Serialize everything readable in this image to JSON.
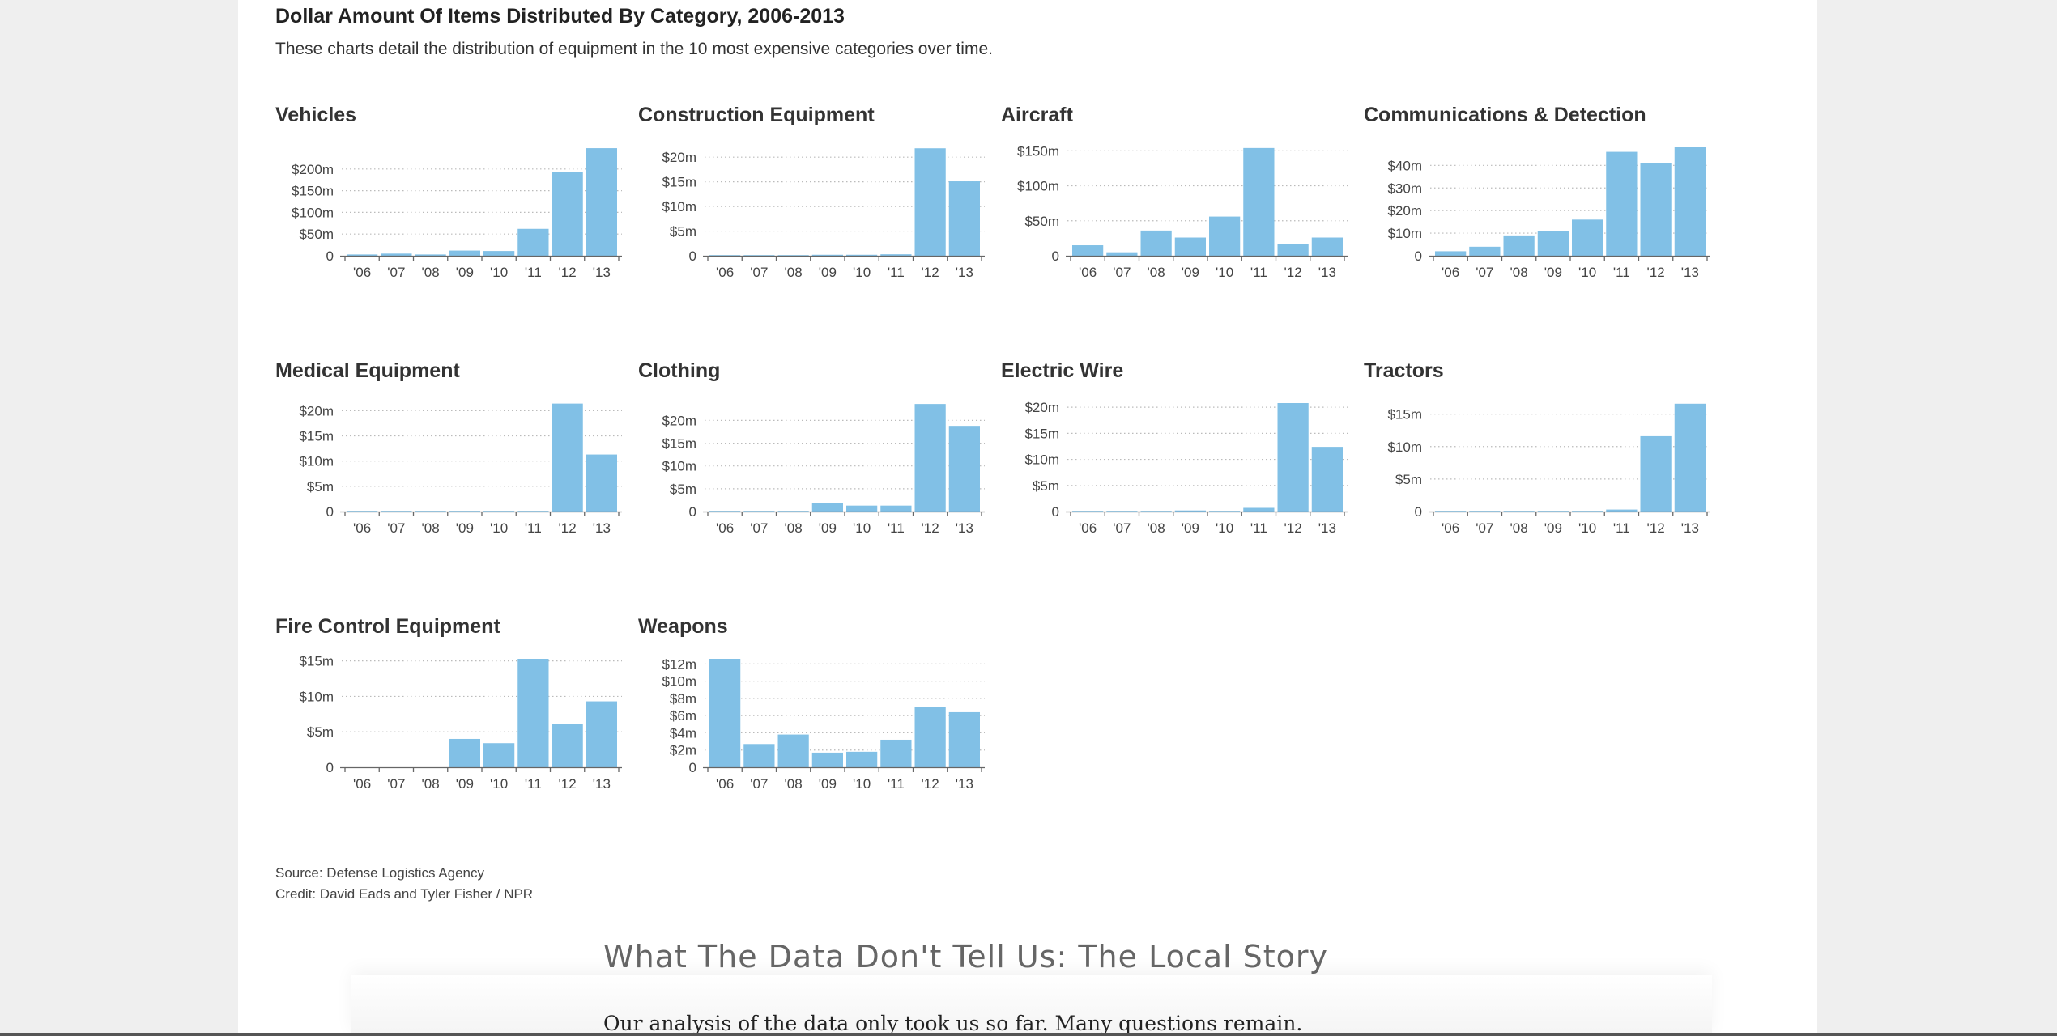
{
  "header": {
    "title": "Dollar Amount Of Items Distributed By Category, 2006-2013",
    "subtitle": "These charts detail the distribution of equipment in the 10 most expensive categories over time."
  },
  "colors": {
    "bar": "#81c0e6",
    "page_background": "#efefef"
  },
  "chart_data": [
    {
      "type": "bar",
      "title": "Vehicles",
      "categories": [
        "'06",
        "'07",
        "'08",
        "'09",
        "'10",
        "'11",
        "'12",
        "'13"
      ],
      "values": [
        3,
        5,
        3,
        12,
        11,
        62,
        194,
        248
      ],
      "ylim": [
        0,
        250
      ],
      "yticks": [
        0,
        50,
        100,
        150,
        200
      ],
      "ytick_labels": [
        "0",
        "$50m",
        "$100m",
        "$150m",
        "$200m"
      ],
      "grid": true
    },
    {
      "type": "bar",
      "title": "Construction Equipment",
      "categories": [
        "'06",
        "'07",
        "'08",
        "'09",
        "'10",
        "'11",
        "'12",
        "'13"
      ],
      "values": [
        0.1,
        0.1,
        0.1,
        0.2,
        0.2,
        0.3,
        21.8,
        15.1
      ],
      "ylim": [
        0,
        22
      ],
      "yticks": [
        0,
        5,
        10,
        15,
        20
      ],
      "ytick_labels": [
        "0",
        "$5m",
        "$10m",
        "$15m",
        "$20m"
      ],
      "grid": true
    },
    {
      "type": "bar",
      "title": "Aircraft",
      "categories": [
        "'06",
        "'07",
        "'08",
        "'09",
        "'10",
        "'11",
        "'12",
        "'13"
      ],
      "values": [
        15,
        5,
        36,
        26,
        56,
        154,
        17,
        26
      ],
      "ylim": [
        0,
        155
      ],
      "yticks": [
        0,
        50,
        100,
        150
      ],
      "ytick_labels": [
        "0",
        "$50m",
        "$100m",
        "$150m"
      ],
      "grid": true
    },
    {
      "type": "bar",
      "title": "Communications & Detection",
      "categories": [
        "'06",
        "'07",
        "'08",
        "'09",
        "'10",
        "'11",
        "'12",
        "'13"
      ],
      "values": [
        2,
        4,
        9,
        11,
        16,
        46,
        41,
        48
      ],
      "ylim": [
        0,
        48
      ],
      "yticks": [
        0,
        10,
        20,
        30,
        40
      ],
      "ytick_labels": [
        "0",
        "$10m",
        "$20m",
        "$30m",
        "$40m"
      ],
      "grid": true
    },
    {
      "type": "bar",
      "title": "Medical Equipment",
      "categories": [
        "'06",
        "'07",
        "'08",
        "'09",
        "'10",
        "'11",
        "'12",
        "'13"
      ],
      "values": [
        0.05,
        0.05,
        0.05,
        0.05,
        0.1,
        0.1,
        21.4,
        11.3
      ],
      "ylim": [
        0,
        21.5
      ],
      "yticks": [
        0,
        5,
        10,
        15,
        20
      ],
      "ytick_labels": [
        "0",
        "$5m",
        "$10m",
        "$15m",
        "$20m"
      ],
      "grid": true
    },
    {
      "type": "bar",
      "title": "Clothing",
      "categories": [
        "'06",
        "'07",
        "'08",
        "'09",
        "'10",
        "'11",
        "'12",
        "'13"
      ],
      "values": [
        0.05,
        0.05,
        0.1,
        1.8,
        1.3,
        1.3,
        23.6,
        18.8
      ],
      "ylim": [
        0,
        23.8
      ],
      "yticks": [
        0,
        5,
        10,
        15,
        20
      ],
      "ytick_labels": [
        "0",
        "$5m",
        "$10m",
        "$15m",
        "$20m"
      ],
      "grid": true
    },
    {
      "type": "bar",
      "title": "Electric Wire",
      "categories": [
        "'06",
        "'07",
        "'08",
        "'09",
        "'10",
        "'11",
        "'12",
        "'13"
      ],
      "values": [
        0.05,
        0.05,
        0.1,
        0.2,
        0.1,
        0.7,
        20.8,
        12.4
      ],
      "ylim": [
        0,
        20.8
      ],
      "yticks": [
        0,
        5,
        10,
        15,
        20
      ],
      "ytick_labels": [
        "0",
        "$5m",
        "$10m",
        "$15m",
        "$20m"
      ],
      "grid": true
    },
    {
      "type": "bar",
      "title": "Tractors",
      "categories": [
        "'06",
        "'07",
        "'08",
        "'09",
        "'10",
        "'11",
        "'12",
        "'13"
      ],
      "values": [
        0.05,
        0.05,
        0.05,
        0.05,
        0.1,
        0.3,
        11.6,
        16.6
      ],
      "ylim": [
        0,
        16.7
      ],
      "yticks": [
        0,
        5,
        10,
        15
      ],
      "ytick_labels": [
        "0",
        "$5m",
        "$10m",
        "$15m"
      ],
      "grid": true
    },
    {
      "type": "bar",
      "title": "Fire Control Equipment",
      "categories": [
        "'06",
        "'07",
        "'08",
        "'09",
        "'10",
        "'11",
        "'12",
        "'13"
      ],
      "values": [
        0,
        0,
        0,
        4.0,
        3.4,
        15.3,
        6.1,
        9.3
      ],
      "ylim": [
        0,
        15.3
      ],
      "yticks": [
        0,
        5,
        10,
        15
      ],
      "ytick_labels": [
        "0",
        "$5m",
        "$10m",
        "$15m"
      ],
      "grid": true
    },
    {
      "type": "bar",
      "title": "Weapons",
      "categories": [
        "'06",
        "'07",
        "'08",
        "'09",
        "'10",
        "'11",
        "'12",
        "'13"
      ],
      "values": [
        12.6,
        2.7,
        3.8,
        1.7,
        1.8,
        3.2,
        7.0,
        6.4
      ],
      "ylim": [
        0,
        12.6
      ],
      "yticks": [
        0,
        2,
        4,
        6,
        8,
        10,
        12
      ],
      "ytick_labels": [
        "0",
        "$2m",
        "$4m",
        "$6m",
        "$8m",
        "$10m",
        "$12m"
      ],
      "grid": true
    }
  ],
  "footer": {
    "source": "Source: Defense Logistics Agency",
    "credit": "Credit: David Eads and Tyler Fisher / NPR"
  },
  "article": {
    "section_heading": "What The Data Don't Tell Us: The Local Story",
    "lead": "Our analysis of the data only took us so far. Many questions remain."
  }
}
